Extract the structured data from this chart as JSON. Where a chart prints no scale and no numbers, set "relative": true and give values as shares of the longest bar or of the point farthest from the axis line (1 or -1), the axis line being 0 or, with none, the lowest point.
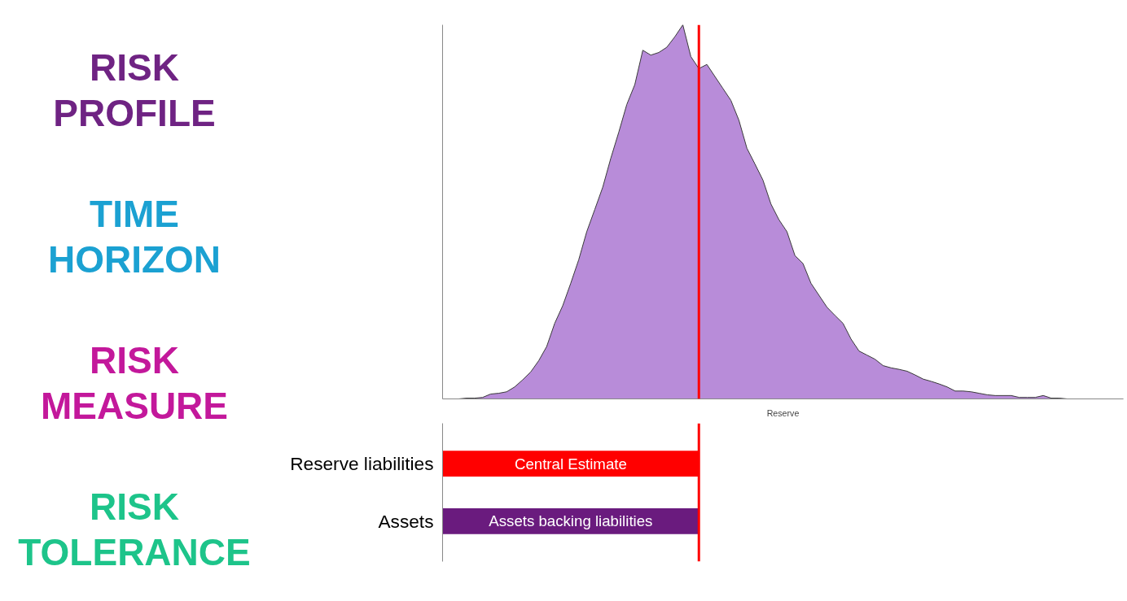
{
  "chart_data": [
    {
      "type": "area",
      "relative": true,
      "xlabel": "Reserve",
      "color": "#b88cd9",
      "categories": [
        null,
        null,
        null,
        null,
        null,
        null,
        null,
        null,
        null,
        null,
        null,
        null,
        null,
        null,
        null,
        null,
        null,
        null,
        null,
        null,
        null,
        null,
        null,
        null,
        null,
        null,
        null,
        null,
        null,
        null,
        null,
        null,
        null,
        null,
        null,
        null,
        null,
        null,
        null,
        null,
        null,
        null,
        null,
        null,
        null,
        null,
        null,
        null,
        null,
        null,
        null,
        null,
        null,
        null,
        null,
        null,
        null,
        null,
        null,
        null,
        null,
        null,
        null,
        null,
        null,
        null,
        null,
        null,
        null,
        null,
        null,
        null,
        null,
        null,
        null,
        null,
        null,
        null,
        null,
        null,
        null,
        null,
        null,
        null,
        null,
        null
      ],
      "values": [
        0,
        0,
        0,
        0.002,
        0.002,
        0.004,
        0.013,
        0.015,
        0.019,
        0.032,
        0.051,
        0.072,
        0.102,
        0.14,
        0.202,
        0.249,
        0.309,
        0.372,
        0.447,
        0.506,
        0.566,
        0.643,
        0.713,
        0.787,
        0.84,
        0.932,
        0.919,
        0.926,
        0.94,
        0.968,
        1,
        0.915,
        0.883,
        0.894,
        0.862,
        0.83,
        0.798,
        0.745,
        0.67,
        0.628,
        0.585,
        0.521,
        0.479,
        0.447,
        0.383,
        0.362,
        0.309,
        0.277,
        0.245,
        0.223,
        0.202,
        0.16,
        0.128,
        0.117,
        0.106,
        0.089,
        0.083,
        0.079,
        0.074,
        0.064,
        0.053,
        0.047,
        0.04,
        0.032,
        0.021,
        0.021,
        0.019,
        0.015,
        0.011,
        0.009,
        0.009,
        0.009,
        0.004,
        0.004,
        0.004,
        0.009,
        0.002,
        0.002,
        0,
        0,
        0,
        0,
        0,
        0,
        0,
        0
      ],
      "annotations": [
        "RISK PROFILE",
        "TIME HORIZON",
        "RISK MEASURE",
        "RISK TOLERANCE"
      ]
    },
    {
      "type": "bar",
      "orientation": "horizontal",
      "relative": true,
      "categories": [
        "Reserve liabilities",
        "Assets"
      ],
      "values": [
        1,
        1
      ],
      "colors": [
        "#ff0000",
        "#6a1b7e"
      ],
      "annotations": [
        "Central Estimate",
        "Assets backing liabilities"
      ]
    }
  ]
}
